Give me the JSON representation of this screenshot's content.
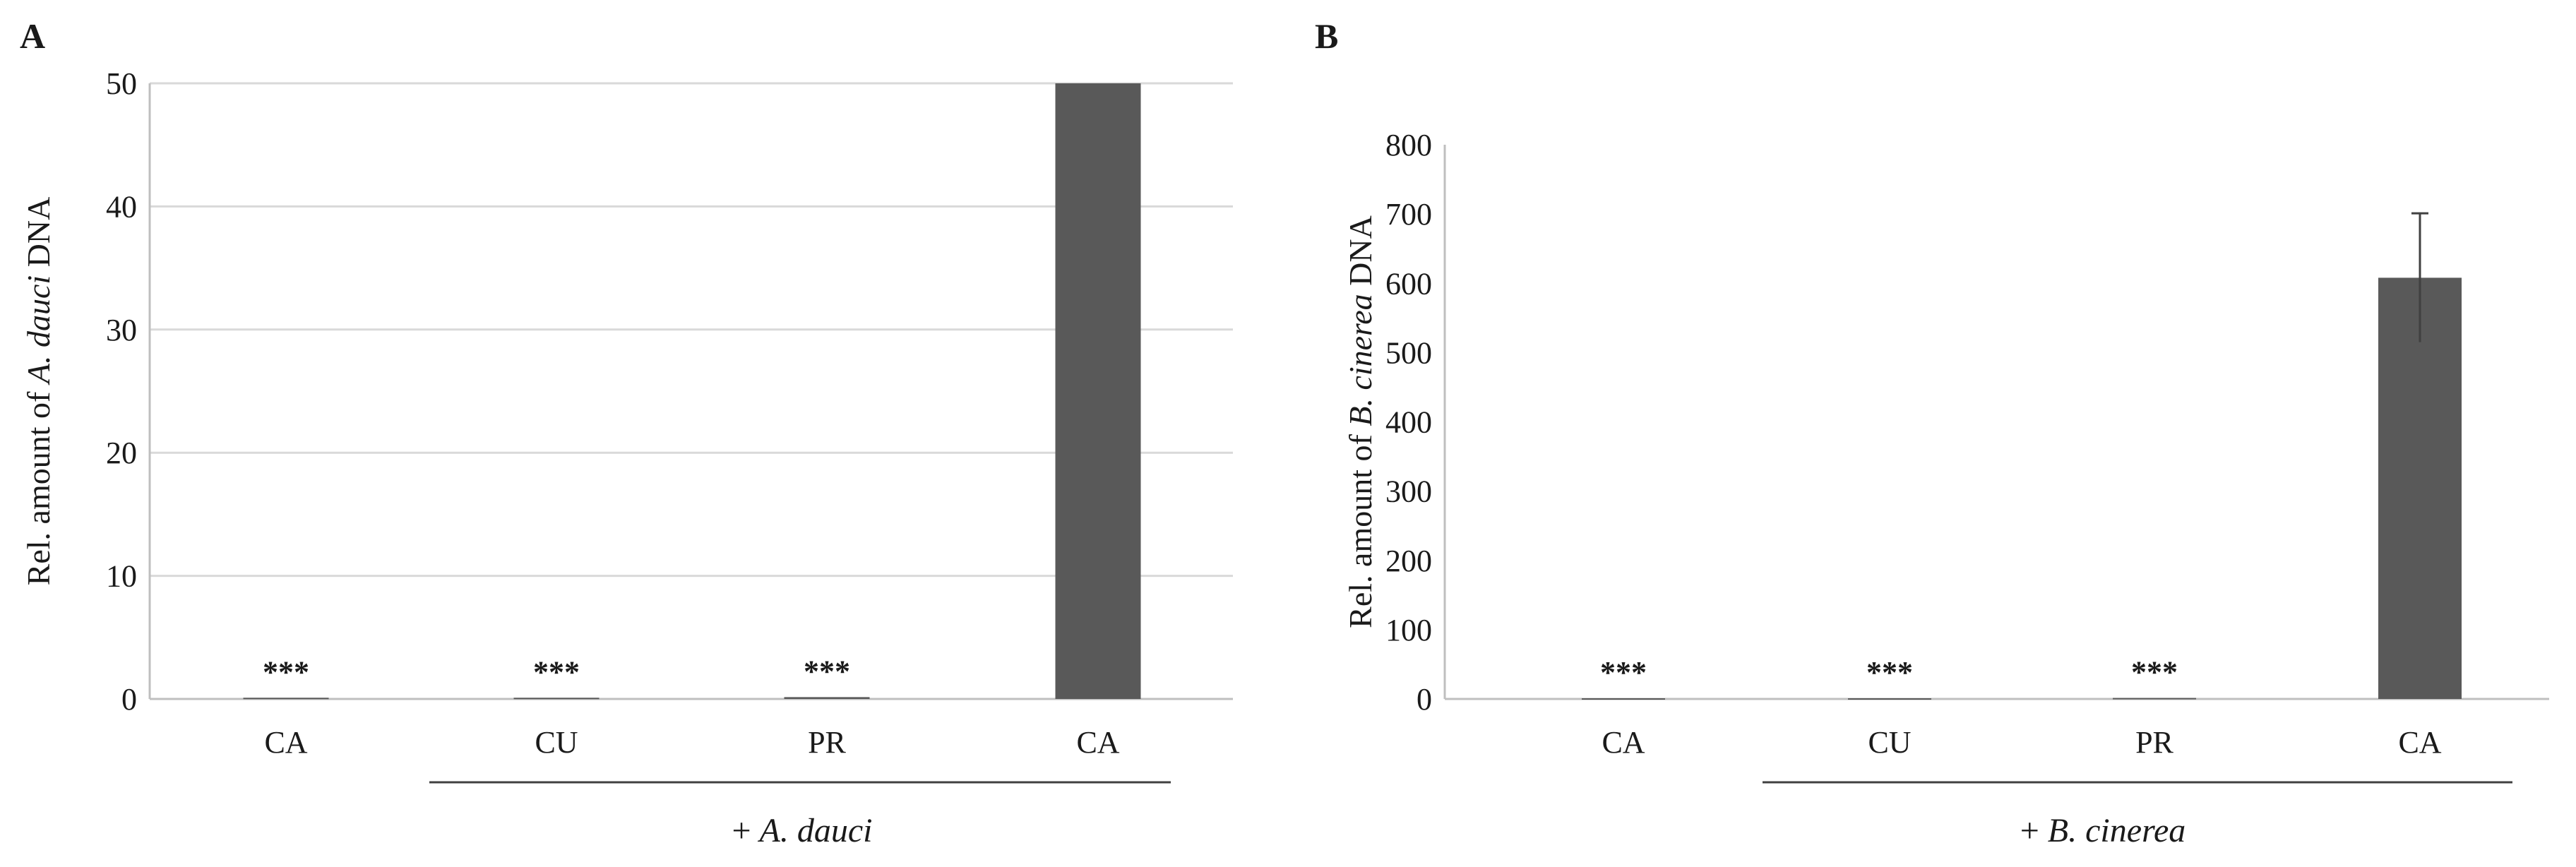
{
  "chart_data": [
    {
      "type": "bar",
      "panel_label": "A",
      "categories": [
        "CA",
        "CU",
        "PR",
        "CA"
      ],
      "values": [
        0.1,
        0.1,
        0.15,
        50
      ],
      "error": [
        0,
        0,
        0,
        0
      ],
      "annotations": [
        "***",
        "***",
        "***",
        ""
      ],
      "ylabel_parts": [
        {
          "text": "Rel.  amount of ",
          "italic": false
        },
        {
          "text": "A. dauci",
          "italic": true
        },
        {
          "text": " DNA",
          "italic": false
        }
      ],
      "group_label_parts": [
        {
          "text": "+ ",
          "italic": false
        },
        {
          "text": "A. dauci",
          "italic": true
        }
      ],
      "group_start_index": 1,
      "ylim": [
        0,
        50
      ],
      "yticks": [
        0,
        10,
        20,
        30,
        40,
        50
      ],
      "grid": true,
      "bar_color": "#595959",
      "grid_color": "#d9d9d9"
    },
    {
      "type": "bar",
      "panel_label": "B",
      "categories": [
        "CA",
        "CU",
        "PR",
        "CA"
      ],
      "values": [
        1,
        1,
        1.5,
        608
      ],
      "error": [
        0,
        0,
        0,
        93
      ],
      "annotations": [
        "***",
        "***",
        "***",
        ""
      ],
      "ylabel_parts": [
        {
          "text": "Rel.  amount of ",
          "italic": false
        },
        {
          "text": "B. cinerea",
          "italic": true
        },
        {
          "text": " DNA",
          "italic": false
        }
      ],
      "group_label_parts": [
        {
          "text": "+ ",
          "italic": false
        },
        {
          "text": "B. cinerea",
          "italic": true
        }
      ],
      "group_start_index": 1,
      "ylim": [
        0,
        800
      ],
      "yticks": [
        0,
        100,
        200,
        300,
        400,
        500,
        600,
        700,
        800
      ],
      "grid": false,
      "bar_color": "#595959",
      "grid_color": "#d9d9d9"
    }
  ]
}
